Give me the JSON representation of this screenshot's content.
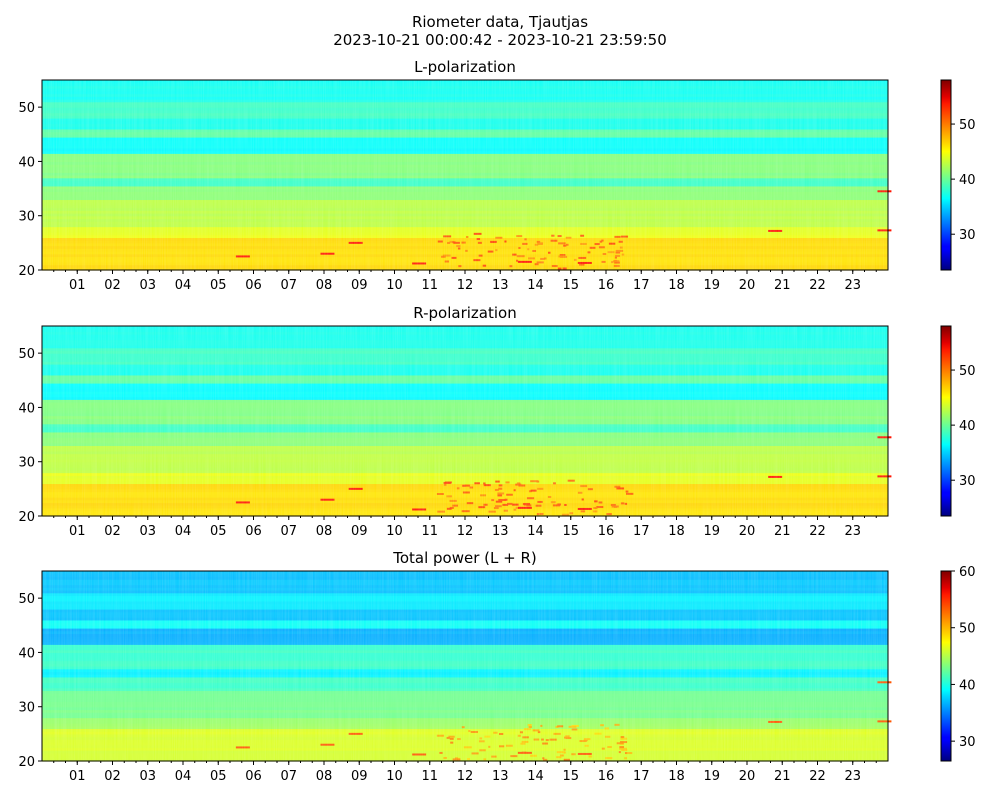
{
  "figure": {
    "title_line1": "Riometer data, Tjautjas",
    "title_line2": "2023-10-21 00:00:42 - 2023-10-21 23:59:50"
  },
  "chart_data": [
    {
      "type": "heatmap",
      "title": "L-polarization",
      "xlabel": "",
      "ylabel": "",
      "x_tick_labels": [
        "01",
        "02",
        "03",
        "04",
        "05",
        "06",
        "07",
        "08",
        "09",
        "10",
        "11",
        "12",
        "13",
        "14",
        "15",
        "16",
        "17",
        "18",
        "19",
        "20",
        "21",
        "22",
        "23"
      ],
      "x_ticks": [
        1,
        2,
        3,
        4,
        5,
        6,
        7,
        8,
        9,
        10,
        11,
        12,
        13,
        14,
        15,
        16,
        17,
        18,
        19,
        20,
        21,
        22,
        23
      ],
      "xlim": [
        0,
        24
      ],
      "y_ticks": [
        20,
        30,
        40,
        50
      ],
      "ylim": [
        20,
        55
      ],
      "colormap": "jet",
      "colorbar_range": [
        23.5,
        58
      ],
      "colorbar_ticks": [
        30,
        40,
        50
      ],
      "grid": false
    },
    {
      "type": "heatmap",
      "title": "R-polarization",
      "xlabel": "",
      "ylabel": "",
      "x_tick_labels": [
        "01",
        "02",
        "03",
        "04",
        "05",
        "06",
        "07",
        "08",
        "09",
        "10",
        "11",
        "12",
        "13",
        "14",
        "15",
        "16",
        "17",
        "18",
        "19",
        "20",
        "21",
        "22",
        "23"
      ],
      "x_ticks": [
        1,
        2,
        3,
        4,
        5,
        6,
        7,
        8,
        9,
        10,
        11,
        12,
        13,
        14,
        15,
        16,
        17,
        18,
        19,
        20,
        21,
        22,
        23
      ],
      "xlim": [
        0,
        24
      ],
      "y_ticks": [
        20,
        30,
        40,
        50
      ],
      "ylim": [
        20,
        55
      ],
      "colormap": "jet",
      "colorbar_range": [
        23.5,
        58
      ],
      "colorbar_ticks": [
        30,
        40,
        50
      ],
      "grid": false
    },
    {
      "type": "heatmap",
      "title": "Total power (L + R)",
      "xlabel": "",
      "ylabel": "",
      "x_tick_labels": [
        "01",
        "02",
        "03",
        "04",
        "05",
        "06",
        "07",
        "08",
        "09",
        "10",
        "11",
        "12",
        "13",
        "14",
        "15",
        "16",
        "17",
        "18",
        "19",
        "20",
        "21",
        "22",
        "23"
      ],
      "x_ticks": [
        1,
        2,
        3,
        4,
        5,
        6,
        7,
        8,
        9,
        10,
        11,
        12,
        13,
        14,
        15,
        16,
        17,
        18,
        19,
        20,
        21,
        22,
        23
      ],
      "xlim": [
        0,
        24
      ],
      "y_ticks": [
        20,
        30,
        40,
        50
      ],
      "ylim": [
        20,
        55
      ],
      "colormap": "jet",
      "colorbar_range": [
        26.5,
        60
      ],
      "colorbar_ticks": [
        30,
        40,
        50,
        60
      ],
      "grid": false
    }
  ]
}
